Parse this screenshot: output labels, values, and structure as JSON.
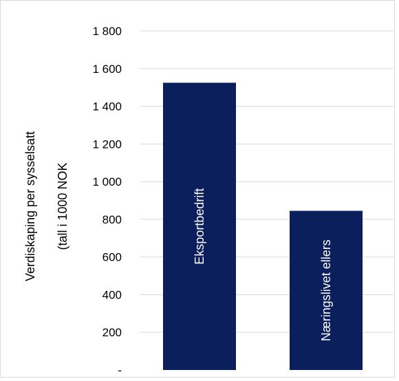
{
  "chart_data": {
    "type": "bar",
    "categories": [
      "Eksportbedrift",
      "Næringslivet ellers"
    ],
    "values": [
      1525,
      845
    ],
    "ylabel_lines": [
      "Verdiskaping per sysselsatt",
      "(tall i 1000 NOK"
    ],
    "ylim": [
      0,
      1800
    ],
    "yticks": [
      0,
      200,
      400,
      600,
      800,
      1000,
      1200,
      1400,
      1600,
      1800
    ],
    "ytick_labels": [
      "-",
      "200",
      "400",
      "600",
      "800",
      "1 000",
      "1 200",
      "1 400",
      "1 600",
      "1 800"
    ],
    "grid": true,
    "legend": "none",
    "bar_color": "#0b1f5c",
    "grid_color": "#d9d9d9",
    "labels_inside_bars_rotated": true
  }
}
